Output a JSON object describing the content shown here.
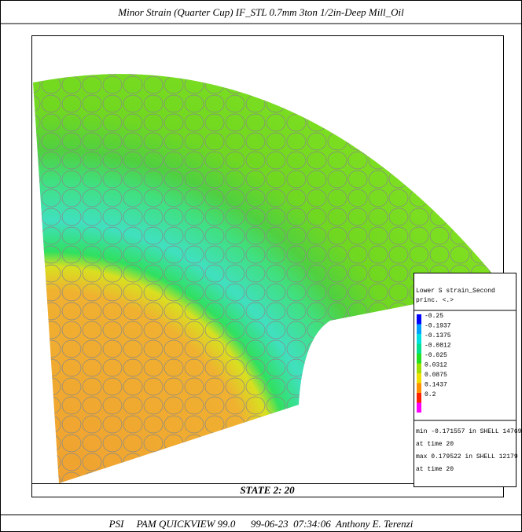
{
  "header": {
    "title": "Minor Strain (Quarter Cup) IF_STL 0.7mm 3ton 1/2in-Deep Mill_Oil"
  },
  "plot": {
    "state_label": "STATE 2: 20"
  },
  "legend": {
    "title_lines": [
      "Lower S strain_Second",
      "princ. <.>"
    ],
    "entries": [
      {
        "label": "-0.25",
        "color": "#0000ff"
      },
      {
        "label": "-0.1937",
        "color": "#00a0ff"
      },
      {
        "label": "-0.1375",
        "color": "#00e0e0"
      },
      {
        "label": "-0.0812",
        "color": "#00e090"
      },
      {
        "label": "-0.025",
        "color": "#20e020"
      },
      {
        "label": "0.0312",
        "color": "#a0e000"
      },
      {
        "label": "0.0875",
        "color": "#f0e000"
      },
      {
        "label": "0.1437",
        "color": "#ff9000"
      },
      {
        "label": "0.2",
        "color": "#ff2000"
      }
    ],
    "end_color": "#ff00ff",
    "info_lines": [
      "min -0.171557 in SHELL 14769",
      "at time 20",
      "max 0.179522 in SHELL 12179",
      "at time 20"
    ]
  },
  "footer": {
    "text": "PSI     PAM QUICKVIEW 99.0      99-06-23  07:34:06  Anthony E. Terenzi"
  }
}
